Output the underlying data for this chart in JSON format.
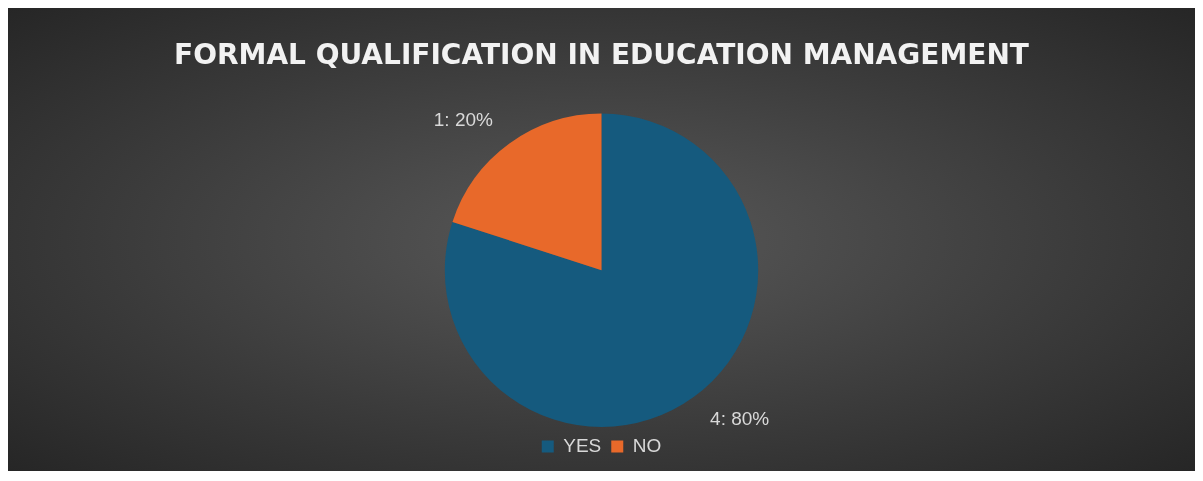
{
  "chart_data": {
    "type": "pie",
    "title": "FORMAL QUALIFICATION IN EDUCATION MANAGEMENT",
    "categories": [
      "YES",
      "NO"
    ],
    "values": [
      4,
      1
    ],
    "colors": [
      "#155a7e",
      "#e8692a"
    ],
    "value_labels": [
      "4: 80%",
      "1: 20%"
    ],
    "legend": "bottom"
  }
}
